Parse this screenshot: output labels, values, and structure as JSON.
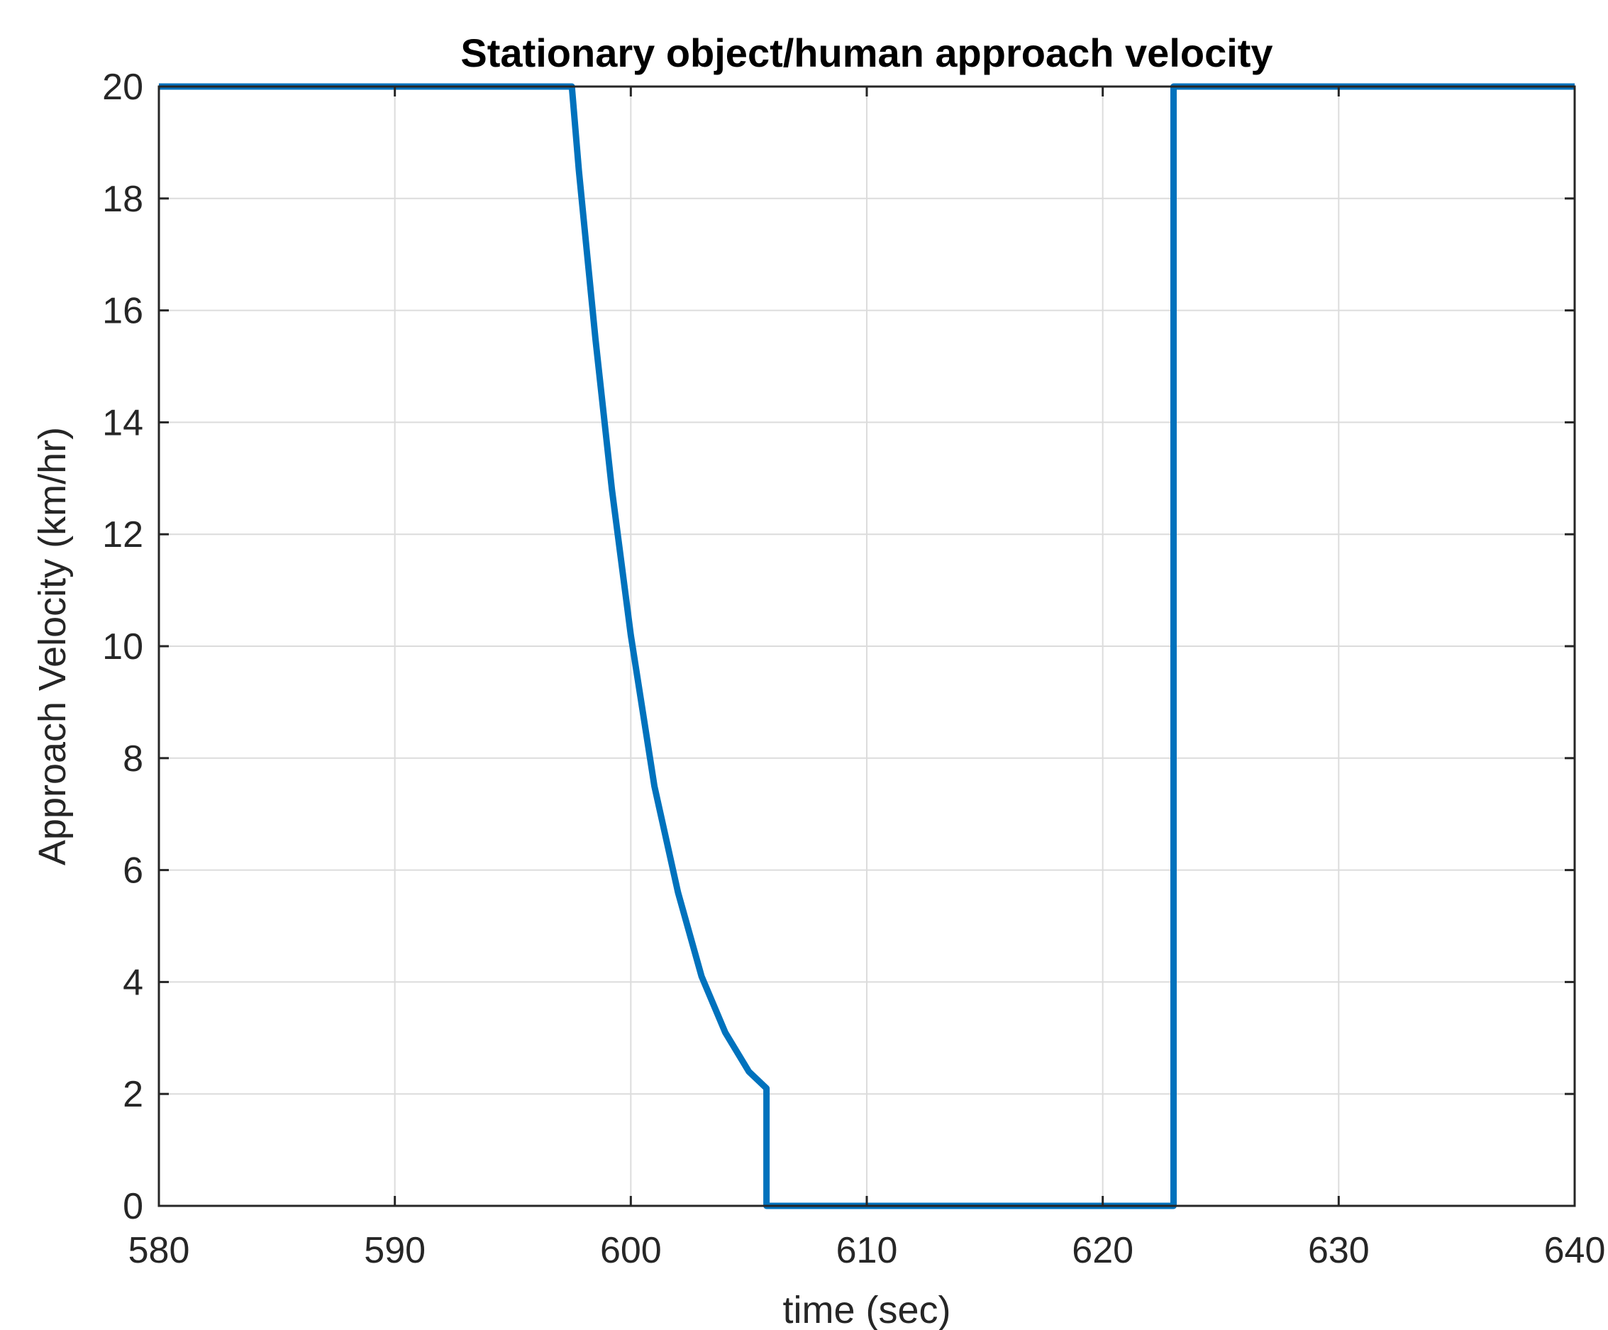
{
  "chart_data": {
    "type": "line",
    "title": "Stationary object/human approach velocity",
    "xlabel": "time (sec)",
    "ylabel": "Approach Velocity (km/hr)",
    "xlim": [
      580,
      640
    ],
    "ylim": [
      0,
      20
    ],
    "xticks": [
      580,
      590,
      600,
      610,
      620,
      630,
      640
    ],
    "yticks": [
      0,
      2,
      4,
      6,
      8,
      10,
      12,
      14,
      16,
      18,
      20
    ],
    "xtick_labels": [
      "580",
      "590",
      "600",
      "610",
      "620",
      "630",
      "640"
    ],
    "ytick_labels": [
      "0",
      "2",
      "4",
      "6",
      "8",
      "10",
      "12",
      "14",
      "16",
      "18",
      "20"
    ],
    "grid": true,
    "legend": "none",
    "series": [
      {
        "color": "#0072BD",
        "x": [
          580,
          597.5,
          597.8,
          598.5,
          599.2,
          600.0,
          601.0,
          602.0,
          603.0,
          604.0,
          605.0,
          605.75,
          605.75,
          623.0,
          623.0,
          640
        ],
        "y": [
          20,
          20,
          18.5,
          15.5,
          12.8,
          10.2,
          7.5,
          5.6,
          4.1,
          3.1,
          2.4,
          2.1,
          0,
          0,
          20,
          20
        ]
      }
    ]
  }
}
